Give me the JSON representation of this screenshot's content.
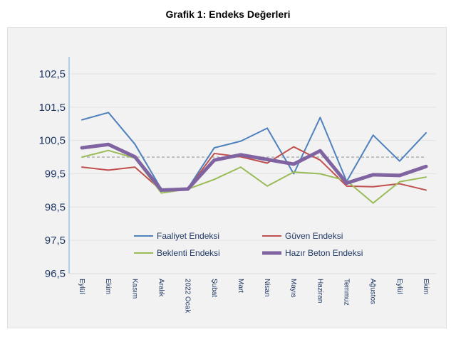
{
  "chart_data": {
    "type": "line",
    "title": "Grafik 1: Endeks Değerleri",
    "xlabel": "",
    "ylabel": "",
    "ylim": [
      96.5,
      102.5
    ],
    "yticks": [
      "96,5",
      "97,5",
      "98,5",
      "99,5",
      "100,5",
      "101,5",
      "102,5"
    ],
    "ytick_values": [
      96.5,
      97.5,
      98.5,
      99.5,
      100.5,
      101.5,
      102.5
    ],
    "reference_line": 100,
    "grid": true,
    "legend_position": "bottom-inside",
    "categories": [
      "Eylül",
      "Ekim",
      "Kasım",
      "Aralık",
      "2022 Ocak",
      "Şubat",
      "Mart",
      "Nisan",
      "Mayıs",
      "Haziran",
      "Temmuz",
      "Ağustos",
      "Eylül",
      "Ekim"
    ],
    "series": [
      {
        "name": "Faaliyet Endeksi",
        "color": "#4f81bd",
        "width": 2,
        "values": [
          101.12,
          101.34,
          100.39,
          99.04,
          99.06,
          100.28,
          100.48,
          100.87,
          99.5,
          101.19,
          99.27,
          100.66,
          99.88,
          100.73
        ]
      },
      {
        "name": "Güven Endeksi",
        "color": "#c0504d",
        "width": 2,
        "values": [
          99.7,
          99.61,
          99.7,
          99.0,
          99.05,
          100.11,
          100.01,
          99.82,
          100.31,
          99.91,
          99.13,
          99.11,
          99.2,
          99.01
        ]
      },
      {
        "name": "Beklenti Endeksi",
        "color": "#9bbb59",
        "width": 2,
        "values": [
          100.0,
          100.2,
          99.97,
          98.92,
          99.04,
          99.33,
          99.7,
          99.13,
          99.55,
          99.5,
          99.29,
          98.62,
          99.26,
          99.4
        ]
      },
      {
        "name": "Hazır Beton Endeksi",
        "color": "#8064a2",
        "width": 5,
        "values": [
          100.28,
          100.38,
          100.01,
          99.01,
          99.04,
          99.91,
          100.07,
          99.93,
          99.79,
          100.19,
          99.22,
          99.47,
          99.45,
          99.72
        ]
      }
    ]
  }
}
